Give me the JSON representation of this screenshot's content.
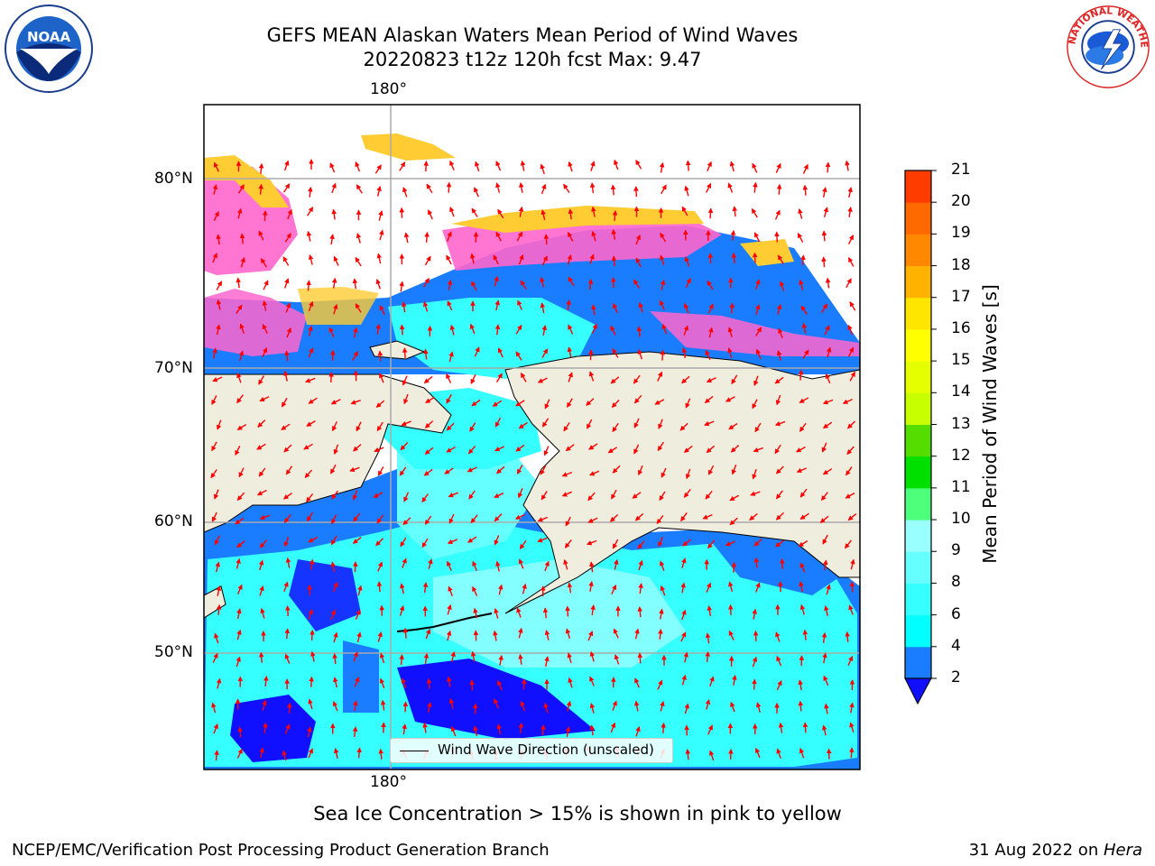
{
  "title_line1": "GEFS MEAN Alaskan Waters Mean Period of Wind Waves",
  "title_line2": "20220823 t12z 120h fcst   Max: 9.47",
  "lon_label_top": "180°",
  "lon_label_bottom": "180°",
  "lat_labels": [
    "80°N",
    "70°N",
    "60°N",
    "50°N"
  ],
  "legend_text": "Wind Wave Direction (unscaled)",
  "footer_note": "Sea Ice Concentration > 15% is shown in pink to yellow",
  "credit": "NCEP/EMC/Verification Post Processing Product Generation Branch",
  "date_prefix": "31 Aug 2022 on ",
  "date_host": "Hera",
  "colorbar": {
    "label": "Mean Period of Wind Waves [s]",
    "ticks": [
      "2",
      "4",
      "6",
      "8",
      "9",
      "10",
      "11",
      "12",
      "13",
      "14",
      "15",
      "16",
      "17",
      "18",
      "19",
      "20",
      "21"
    ],
    "colors": [
      "#1a7cff",
      "#00ffff",
      "#36ffff",
      "#66ffff",
      "#99ffff",
      "#4dff7a",
      "#00e000",
      "#55dd00",
      "#c8ff00",
      "#e6ff00",
      "#ffff00",
      "#ffe600",
      "#ffb300",
      "#ff8800",
      "#ff6a00",
      "#ff3c00",
      "#ff0000"
    ],
    "extend_color": "#1010ff"
  },
  "logos": {
    "left": "NOAA",
    "right_top": "NATIONAL WEATHER SERVICE"
  },
  "colors": {
    "land": "#efedde",
    "ocean_low": "#1a7cff",
    "ocean_deep": "#1010ff",
    "ice_pink": "#ff66cc",
    "ice_yellow": "#ffcc33",
    "arrow": "#ff0000",
    "grid": "#aaaaaa"
  }
}
